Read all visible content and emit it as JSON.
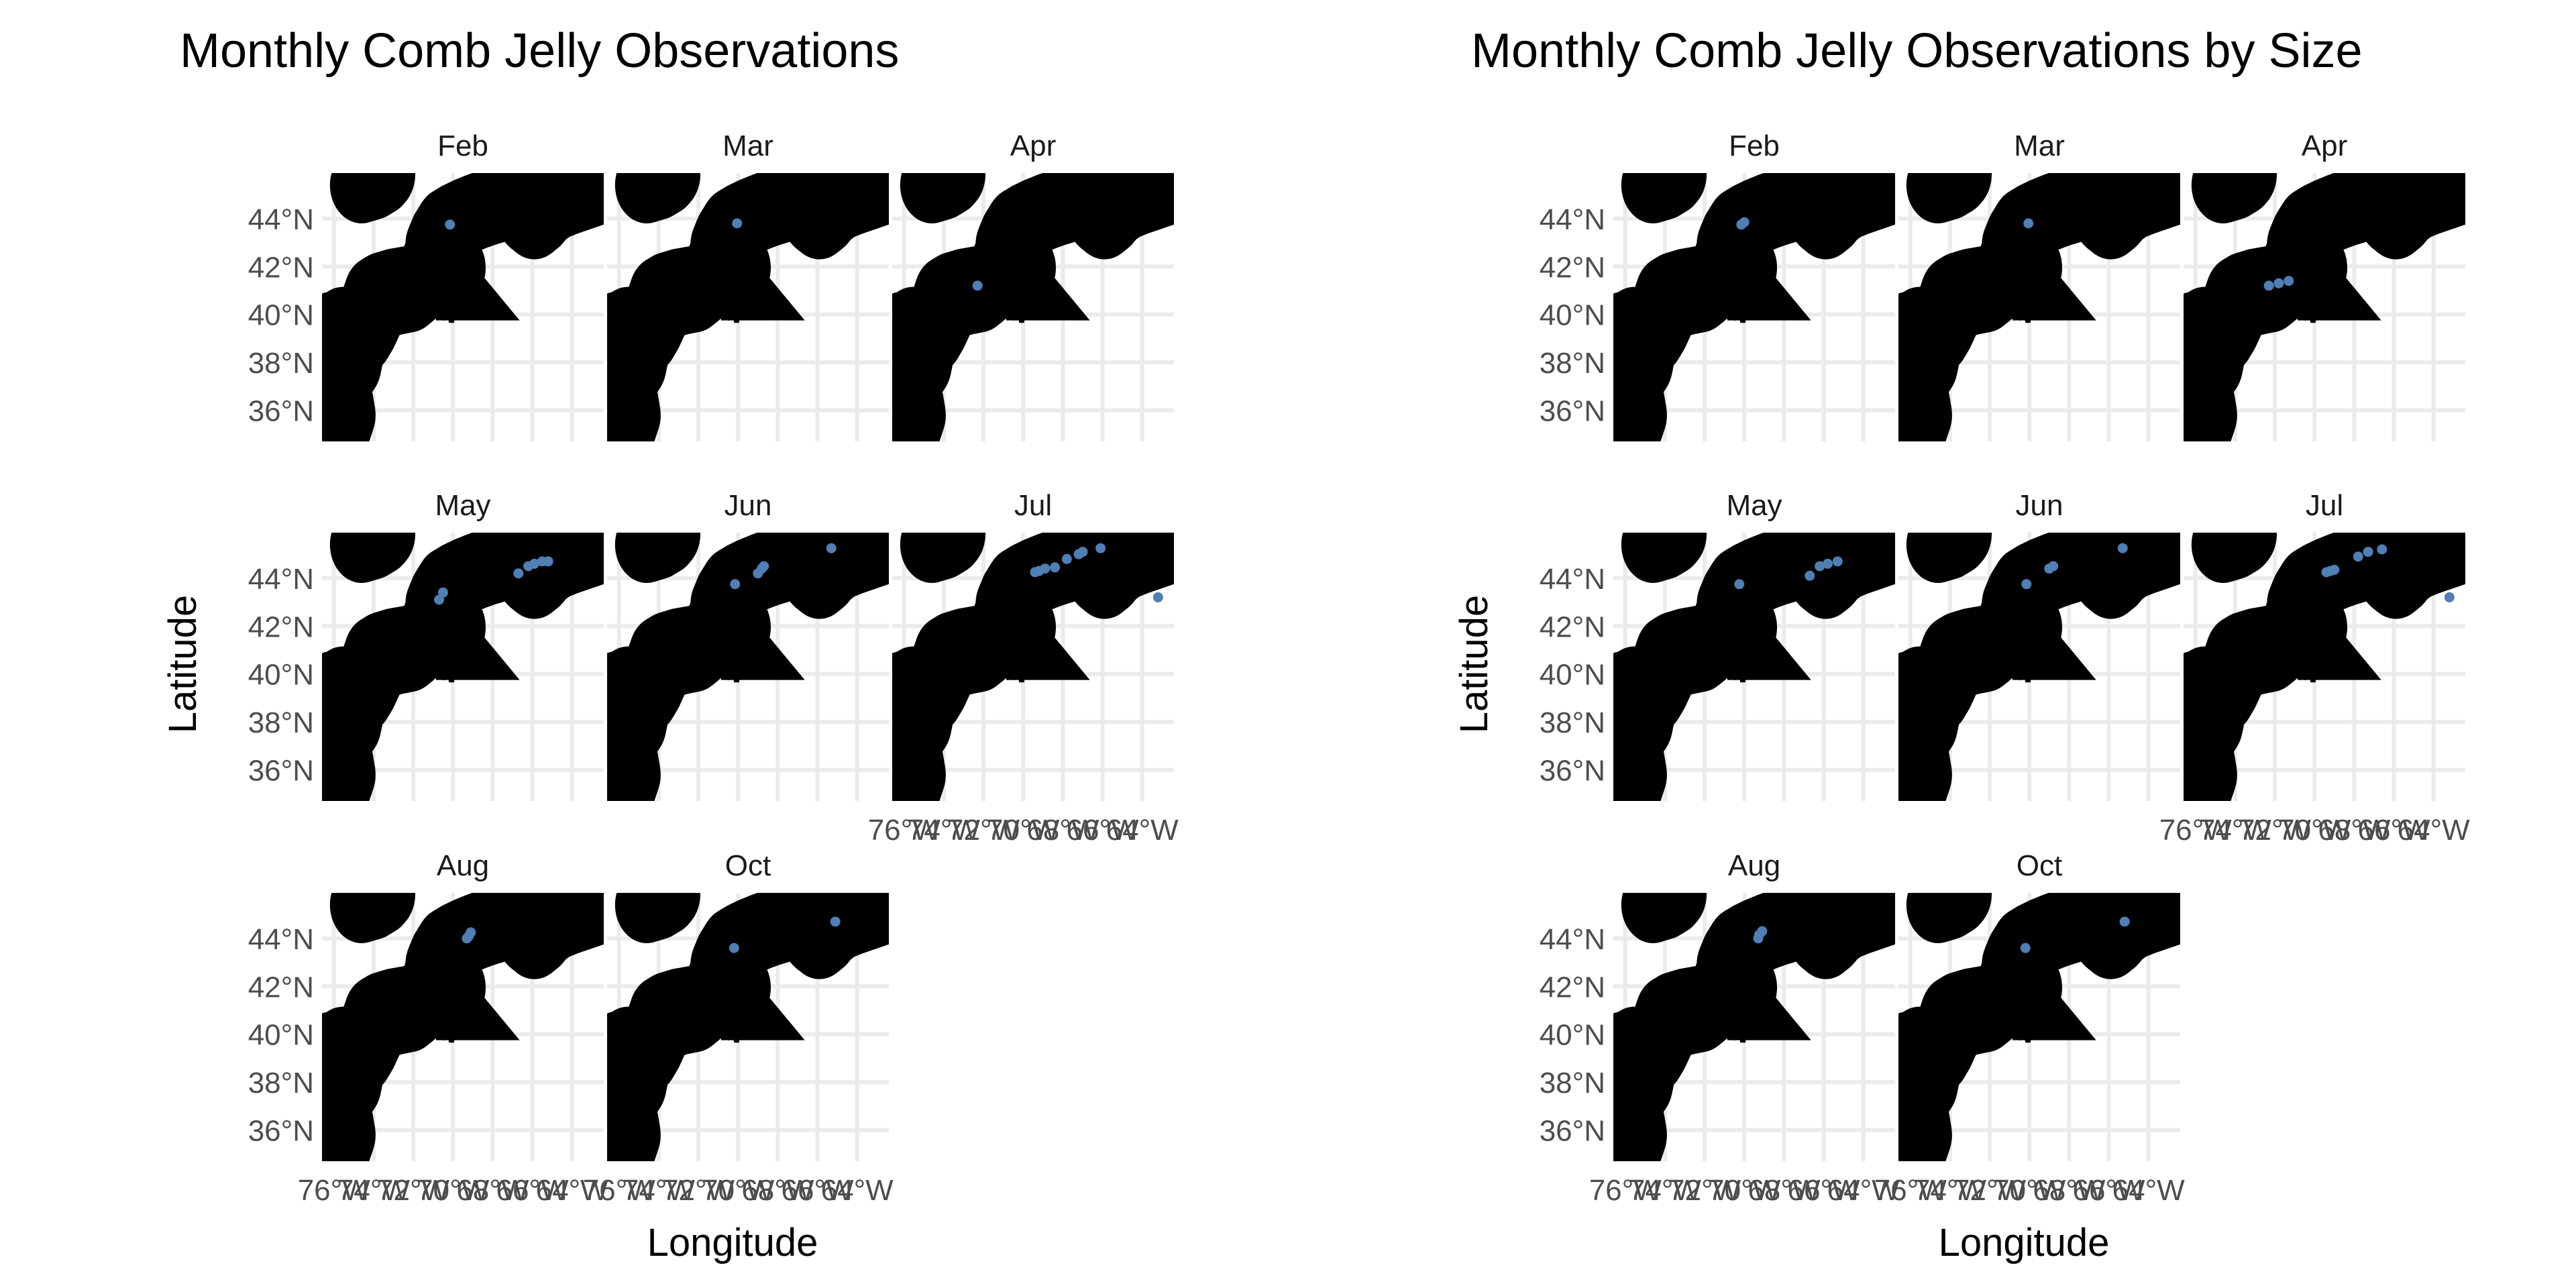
{
  "plots": [
    {
      "title": "Monthly Comb Jelly Observations",
      "xlabel": "Longitude",
      "ylabel": "Latitude",
      "panels": [
        {
          "month": "Feb",
          "points": [
            [
              -70.15,
              43.75
            ]
          ]
        },
        {
          "month": "Mar",
          "points": [
            [
              -70.05,
              43.8
            ]
          ]
        },
        {
          "month": "Apr",
          "points": [
            [
              -72.3,
              41.2
            ]
          ]
        },
        {
          "month": "May",
          "points": [
            [
              -70.7,
              43.1
            ],
            [
              -70.5,
              43.4
            ],
            [
              -66.7,
              44.2
            ],
            [
              -66.2,
              44.5
            ],
            [
              -65.9,
              44.6
            ],
            [
              -65.5,
              44.7
            ],
            [
              -65.2,
              44.7
            ]
          ]
        },
        {
          "month": "Jun",
          "points": [
            [
              -70.15,
              43.75
            ],
            [
              -69.0,
              44.2
            ],
            [
              -68.8,
              44.4
            ],
            [
              -68.7,
              44.5
            ],
            [
              -65.3,
              45.25
            ]
          ]
        },
        {
          "month": "Jul",
          "points": [
            [
              -69.4,
              44.25
            ],
            [
              -69.2,
              44.3
            ],
            [
              -68.9,
              44.4
            ],
            [
              -68.4,
              44.45
            ],
            [
              -67.8,
              44.8
            ],
            [
              -67.2,
              45.0
            ],
            [
              -67.0,
              45.1
            ],
            [
              -66.1,
              45.25
            ],
            [
              -63.2,
              43.2
            ]
          ]
        },
        {
          "month": "Aug",
          "points": [
            [
              -69.3,
              44.0
            ],
            [
              -69.2,
              44.1
            ],
            [
              -69.1,
              44.25
            ]
          ]
        },
        {
          "month": "Oct",
          "points": [
            [
              -70.2,
              43.6
            ],
            [
              -65.1,
              44.7
            ]
          ]
        }
      ]
    },
    {
      "title": "Monthly Comb Jelly Observations by Size",
      "xlabel": "Longitude",
      "ylabel": "Latitude",
      "panels": [
        {
          "month": "Feb",
          "points": [
            [
              -70.15,
              43.75
            ],
            [
              -70.0,
              43.85
            ]
          ]
        },
        {
          "month": "Mar",
          "points": [
            [
              -70.05,
              43.8
            ]
          ]
        },
        {
          "month": "Apr",
          "points": [
            [
              -71.3,
              41.4
            ],
            [
              -71.8,
              41.3
            ],
            [
              -72.3,
              41.2
            ]
          ]
        },
        {
          "month": "May",
          "points": [
            [
              -70.25,
              43.75
            ],
            [
              -66.7,
              44.1
            ],
            [
              -66.2,
              44.5
            ],
            [
              -65.8,
              44.6
            ],
            [
              -65.3,
              44.7
            ]
          ]
        },
        {
          "month": "Jun",
          "points": [
            [
              -70.15,
              43.75
            ],
            [
              -69.0,
              44.4
            ],
            [
              -68.8,
              44.5
            ],
            [
              -65.3,
              45.25
            ]
          ]
        },
        {
          "month": "Jul",
          "points": [
            [
              -69.4,
              44.25
            ],
            [
              -69.2,
              44.3
            ],
            [
              -69.0,
              44.35
            ],
            [
              -67.8,
              44.9
            ],
            [
              -67.3,
              45.1
            ],
            [
              -66.6,
              45.2
            ],
            [
              -63.2,
              43.2
            ]
          ]
        },
        {
          "month": "Aug",
          "points": [
            [
              -69.3,
              44.0
            ],
            [
              -69.25,
              44.15
            ],
            [
              -69.1,
              44.3
            ]
          ]
        },
        {
          "month": "Oct",
          "points": [
            [
              -70.2,
              43.6
            ],
            [
              -65.2,
              44.7
            ]
          ]
        }
      ]
    }
  ],
  "y_ticks": [
    "44°N",
    "42°N",
    "40°N",
    "38°N",
    "36°N"
  ],
  "x_ticks": [
    "76°W",
    "74°W",
    "72°W",
    "70°W",
    "68°W",
    "66°W",
    "64°W"
  ],
  "colors": {
    "points": "#4f7fb4",
    "grid": "#ebebeb"
  }
}
